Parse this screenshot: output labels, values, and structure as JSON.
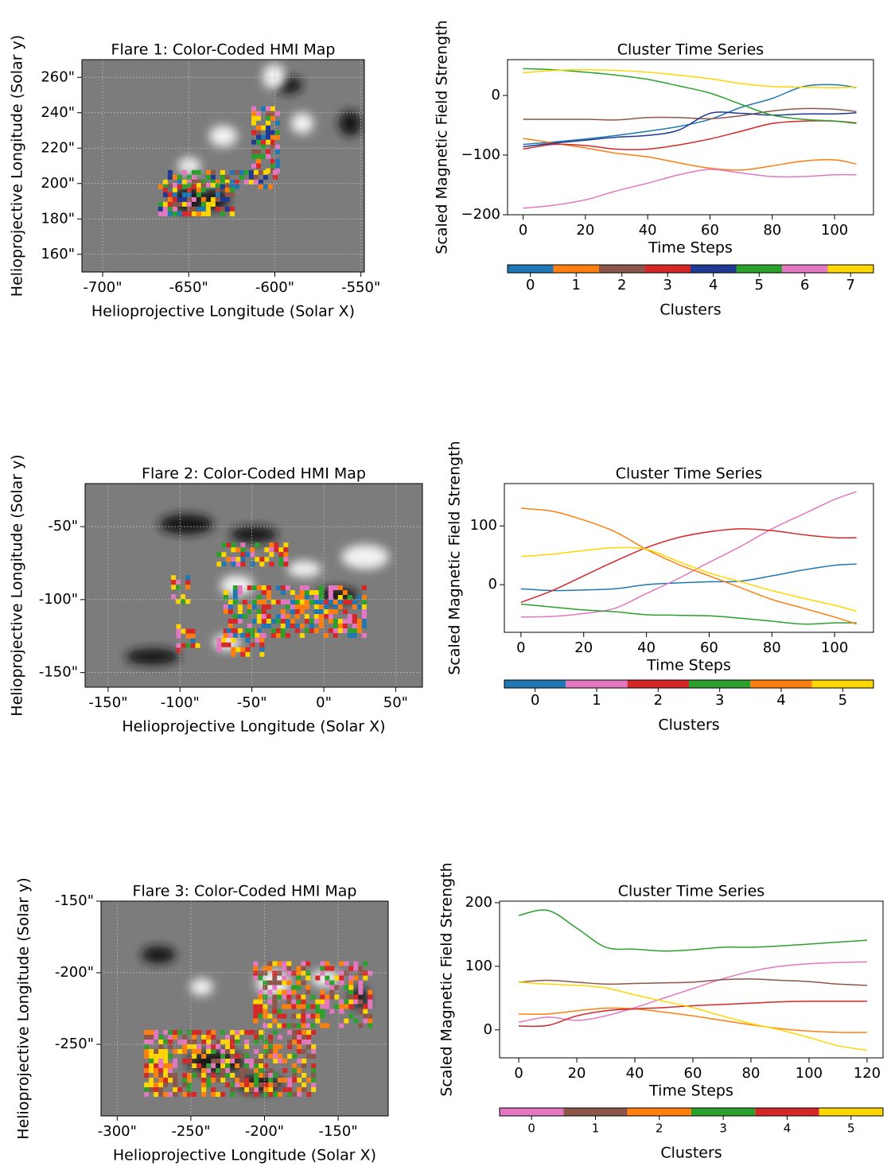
{
  "chart_data": [
    {
      "type": "image",
      "title": "Flare 1: Color-Coded HMI Map",
      "x_label": "Helioprojective Longitude (Solar X)",
      "y_label": "Helioprojective Longitude (Solar y)",
      "xlim": [
        -712,
        -548
      ],
      "ylim": [
        150,
        270
      ],
      "xticks": [
        {
          "value": -700,
          "label": "-700\""
        },
        {
          "value": -650,
          "label": "-650\""
        },
        {
          "value": -600,
          "label": "-600\""
        },
        {
          "value": -550,
          "label": "-550\""
        }
      ],
      "yticks": [
        {
          "value": 160,
          "label": "160\""
        },
        {
          "value": 180,
          "label": "180\""
        },
        {
          "value": 200,
          "label": "200\""
        },
        {
          "value": 220,
          "label": "220\""
        },
        {
          "value": 240,
          "label": "240\""
        },
        {
          "value": 260,
          "label": "260\""
        }
      ],
      "grid": true
    },
    {
      "type": "line",
      "title": "Cluster Time Series",
      "x_label": "Time Steps",
      "y_label": "Scaled Magnetic Field Strength",
      "colorbar_label": "Clusters",
      "x": [
        0,
        10,
        20,
        30,
        40,
        50,
        60,
        70,
        80,
        90,
        100,
        107
      ],
      "xlim": [
        -5,
        112.5
      ],
      "ylim": [
        -200,
        60
      ],
      "xticks": [
        0,
        20,
        40,
        60,
        80,
        100
      ],
      "yticks": [
        {
          "value": -200,
          "label": "−200"
        },
        {
          "value": -100,
          "label": "−100"
        },
        0
      ],
      "series": [
        {
          "name": "0",
          "color": "#1f77b4",
          "values": [
            -82,
            -78,
            -73,
            -67,
            -60,
            -52,
            -40,
            -20,
            -5,
            15,
            18,
            13
          ]
        },
        {
          "name": "1",
          "color": "#ff7f0e",
          "values": [
            -72,
            -80,
            -88,
            -97,
            -103,
            -113,
            -122,
            -125,
            -118,
            -110,
            -108,
            -115
          ]
        },
        {
          "name": "2",
          "color": "#8c564b",
          "values": [
            -40,
            -40,
            -40,
            -41,
            -37,
            -37,
            -39,
            -34,
            -26,
            -22,
            -23,
            -27
          ]
        },
        {
          "name": "3",
          "color": "#d62728",
          "values": [
            -90,
            -82,
            -84,
            -90,
            -90,
            -83,
            -73,
            -60,
            -47,
            -43,
            -43,
            -46
          ]
        },
        {
          "name": "4",
          "color": "#1f3a93",
          "values": [
            -86,
            -80,
            -75,
            -70,
            -67,
            -58,
            -30,
            -30,
            -33,
            -31,
            -31,
            -29
          ]
        },
        {
          "name": "5",
          "color": "#2ca02c",
          "values": [
            45,
            43,
            39,
            34,
            27,
            16,
            4,
            -15,
            -33,
            -40,
            -43,
            -47
          ]
        },
        {
          "name": "6",
          "color": "#e377c2",
          "values": [
            -189,
            -184,
            -175,
            -160,
            -147,
            -133,
            -124,
            -130,
            -136,
            -136,
            -133,
            -133
          ]
        },
        {
          "name": "7",
          "color": "#ffd700",
          "values": [
            38,
            42,
            43,
            42,
            39,
            34,
            28,
            20,
            15,
            14,
            13,
            14
          ]
        }
      ]
    },
    {
      "type": "image",
      "title": "Flare 2: Color-Coded HMI Map",
      "x_label": "Helioprojective Longitude (Solar X)",
      "y_label": "Helioprojective Longitude (Solar y)",
      "xlim": [
        -166,
        68.6
      ],
      "ylim": [
        -160,
        -20.5
      ],
      "xticks": [
        {
          "value": -150,
          "label": "-150\""
        },
        {
          "value": -100,
          "label": "-100\""
        },
        {
          "value": -50,
          "label": "-50\""
        },
        {
          "value": 0,
          "label": "0\""
        },
        {
          "value": 50,
          "label": "50\""
        }
      ],
      "yticks": [
        {
          "value": -150,
          "label": "-150\""
        },
        {
          "value": -100,
          "label": "-100\""
        },
        {
          "value": -50,
          "label": "-50\""
        }
      ],
      "grid": true
    },
    {
      "type": "line",
      "title": "Cluster Time Series",
      "x_label": "Time Steps",
      "y_label": "Scaled Magnetic Field Strength",
      "colorbar_label": "Clusters",
      "x": [
        0,
        10,
        20,
        30,
        40,
        50,
        60,
        70,
        80,
        90,
        100,
        107
      ],
      "xlim": [
        -5.3,
        112.4
      ],
      "ylim": [
        -81,
        172
      ],
      "xticks": [
        0,
        20,
        40,
        60,
        80,
        100
      ],
      "yticks": [
        0,
        100
      ],
      "series": [
        {
          "name": "0",
          "color": "#1f77b4",
          "values": [
            -7,
            -10,
            -9,
            -7,
            0,
            3,
            5,
            6,
            15,
            25,
            33,
            35
          ]
        },
        {
          "name": "1",
          "color": "#e377c2",
          "values": [
            -55,
            -54,
            -49,
            -40,
            -15,
            10,
            38,
            65,
            95,
            120,
            145,
            158
          ]
        },
        {
          "name": "2",
          "color": "#d62728",
          "values": [
            -30,
            -10,
            15,
            40,
            63,
            80,
            90,
            95,
            92,
            85,
            80,
            80
          ]
        },
        {
          "name": "3",
          "color": "#2ca02c",
          "values": [
            -33,
            -38,
            -43,
            -46,
            -51,
            -52,
            -53,
            -57,
            -62,
            -67,
            -65,
            -65
          ]
        },
        {
          "name": "4",
          "color": "#ff7f0e",
          "values": [
            130,
            125,
            110,
            90,
            60,
            35,
            15,
            -5,
            -25,
            -40,
            -55,
            -67
          ]
        },
        {
          "name": "5",
          "color": "#ffd700",
          "values": [
            48,
            52,
            58,
            63,
            60,
            40,
            20,
            5,
            -10,
            -23,
            -35,
            -45
          ]
        }
      ]
    },
    {
      "type": "image",
      "title": "Flare 3: Color-Coded HMI Map",
      "x_label": "Helioprojective Longitude (Solar X)",
      "y_label": "Helioprojective Longitude (Solar y)",
      "xlim": [
        -311,
        -116
      ],
      "ylim": [
        -300,
        -150
      ],
      "xticks": [
        {
          "value": -300,
          "label": "-300\""
        },
        {
          "value": -250,
          "label": "-250\""
        },
        {
          "value": -200,
          "label": "-200\""
        },
        {
          "value": -150,
          "label": "-150\""
        }
      ],
      "yticks": [
        {
          "value": -250,
          "label": "-250\""
        },
        {
          "value": -200,
          "label": "-200\""
        },
        {
          "value": -150,
          "label": "-150\""
        }
      ],
      "grid": true
    },
    {
      "type": "line",
      "title": "Cluster Time Series",
      "x_label": "Time Steps",
      "y_label": "Scaled Magnetic Field Strength",
      "colorbar_label": "Clusters",
      "x": [
        0,
        10,
        20,
        30,
        40,
        50,
        60,
        70,
        80,
        90,
        100,
        110,
        120
      ],
      "xlim": [
        -6.6,
        125.5
      ],
      "ylim": [
        -44,
        202.5
      ],
      "xticks": [
        0,
        20,
        40,
        60,
        80,
        100,
        120
      ],
      "yticks": [
        0,
        100,
        200
      ],
      "series": [
        {
          "name": "0",
          "color": "#e377c2",
          "values": [
            12,
            20,
            15,
            22,
            35,
            50,
            65,
            80,
            92,
            100,
            104,
            106,
            107
          ]
        },
        {
          "name": "1",
          "color": "#8c564b",
          "values": [
            75,
            78,
            75,
            72,
            73,
            74,
            75,
            79,
            80,
            78,
            76,
            72,
            70
          ]
        },
        {
          "name": "2",
          "color": "#ff7f0e",
          "values": [
            25,
            25,
            30,
            34,
            33,
            28,
            22,
            15,
            8,
            2,
            -2,
            -4,
            -4
          ]
        },
        {
          "name": "3",
          "color": "#2ca02c",
          "values": [
            180,
            188,
            160,
            130,
            127,
            124,
            126,
            130,
            130,
            132,
            135,
            138,
            141
          ]
        },
        {
          "name": "4",
          "color": "#d62728",
          "values": [
            6,
            7,
            22,
            30,
            33,
            35,
            38,
            40,
            42,
            44,
            45,
            45,
            45
          ]
        },
        {
          "name": "5",
          "color": "#ffd700",
          "values": [
            75,
            72,
            70,
            66,
            55,
            45,
            35,
            22,
            10,
            0,
            -12,
            -25,
            -32
          ]
        }
      ]
    }
  ]
}
